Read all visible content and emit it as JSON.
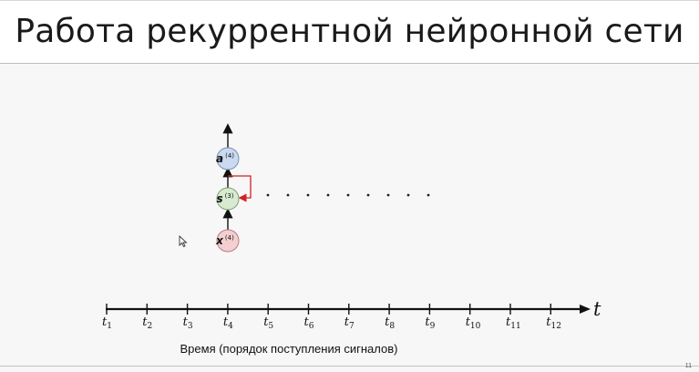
{
  "slide": {
    "title": "Работа рекуррентной нейронной сети",
    "page_number": "11"
  },
  "nodes": [
    {
      "id": "output",
      "base": "a",
      "superscript": "(4)",
      "fill": "#c9d9ef",
      "stroke": "#7a8fb3"
    },
    {
      "id": "state",
      "base": "s",
      "superscript": "(3)",
      "fill": "#d8ead0",
      "stroke": "#7fa070"
    },
    {
      "id": "input",
      "base": "x",
      "superscript": "(4)",
      "fill": "#f3cfd2",
      "stroke": "#b87a80"
    }
  ],
  "recurrent_loop_color": "#d42020",
  "ellipsis_count": 9,
  "timeline": {
    "axis_label": "t",
    "ticks": [
      {
        "base": "t",
        "sub": "1"
      },
      {
        "base": "t",
        "sub": "2"
      },
      {
        "base": "t",
        "sub": "3"
      },
      {
        "base": "t",
        "sub": "4"
      },
      {
        "base": "t",
        "sub": "5"
      },
      {
        "base": "t",
        "sub": "6"
      },
      {
        "base": "t",
        "sub": "7"
      },
      {
        "base": "t",
        "sub": "8"
      },
      {
        "base": "t",
        "sub": "9"
      },
      {
        "base": "t",
        "sub": "10"
      },
      {
        "base": "t",
        "sub": "11"
      },
      {
        "base": "t",
        "sub": "12"
      }
    ],
    "caption": "Время (порядок поступления сигналов)"
  }
}
